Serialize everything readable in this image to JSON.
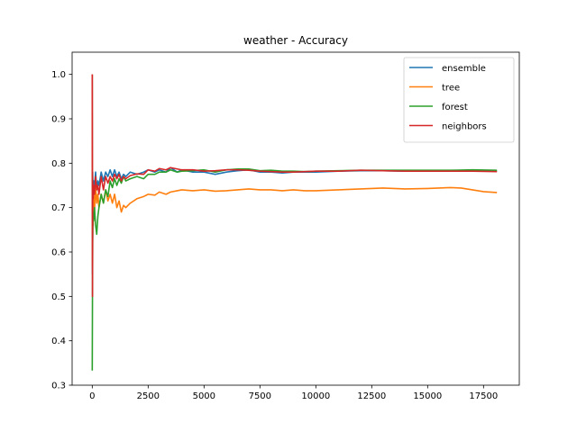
{
  "chart_data": {
    "type": "line",
    "title": "weather - Accuracy",
    "xlabel": "",
    "ylabel": "",
    "xlim": [
      -900,
      19100
    ],
    "ylim": [
      0.3,
      1.05
    ],
    "xticks": [
      0,
      2500,
      5000,
      7500,
      10000,
      12500,
      15000,
      17500
    ],
    "xtick_labels": [
      "0",
      "2500",
      "5000",
      "7500",
      "10000",
      "12500",
      "15000",
      "17500"
    ],
    "yticks": [
      0.3,
      0.4,
      0.5,
      0.6,
      0.7,
      0.8,
      0.9,
      1.0
    ],
    "ytick_labels": [
      "0.3",
      "0.4",
      "0.5",
      "0.6",
      "0.7",
      "0.8",
      "0.9",
      "1.0"
    ],
    "grid": false,
    "legend_position": "top-right",
    "series": [
      {
        "name": "ensemble",
        "color": "#1f77b4",
        "x": [
          0,
          10,
          20,
          40,
          60,
          100,
          150,
          200,
          250,
          300,
          400,
          500,
          600,
          700,
          800,
          900,
          1000,
          1100,
          1200,
          1300,
          1400,
          1500,
          1700,
          2000,
          2300,
          2500,
          2800,
          3000,
          3300,
          3500,
          3800,
          4000,
          4500,
          5000,
          5500,
          6000,
          6500,
          7000,
          7500,
          8000,
          8500,
          9000,
          9500,
          10000,
          11000,
          12000,
          13000,
          14000,
          15000,
          16000,
          17000,
          18100
        ],
        "y": [
          1.0,
          0.55,
          0.78,
          0.72,
          0.76,
          0.75,
          0.78,
          0.74,
          0.76,
          0.75,
          0.78,
          0.76,
          0.78,
          0.77,
          0.785,
          0.77,
          0.785,
          0.77,
          0.78,
          0.765,
          0.775,
          0.77,
          0.78,
          0.775,
          0.78,
          0.785,
          0.78,
          0.785,
          0.78,
          0.79,
          0.78,
          0.785,
          0.78,
          0.78,
          0.775,
          0.78,
          0.783,
          0.785,
          0.78,
          0.78,
          0.778,
          0.78,
          0.78,
          0.78,
          0.782,
          0.783,
          0.783,
          0.782,
          0.783,
          0.783,
          0.783,
          0.782
        ]
      },
      {
        "name": "tree",
        "color": "#ff7f0e",
        "x": [
          0,
          10,
          20,
          40,
          60,
          100,
          150,
          200,
          250,
          300,
          400,
          500,
          600,
          700,
          800,
          900,
          1000,
          1100,
          1200,
          1300,
          1400,
          1500,
          1700,
          2000,
          2300,
          2500,
          2800,
          3000,
          3300,
          3500,
          3800,
          4000,
          4500,
          5000,
          5500,
          6000,
          6500,
          7000,
          7500,
          8000,
          8500,
          9000,
          9500,
          10000,
          11000,
          12000,
          13000,
          14000,
          15000,
          16000,
          16500,
          17000,
          17500,
          18100
        ],
        "y": [
          1.0,
          0.57,
          0.71,
          0.66,
          0.73,
          0.69,
          0.75,
          0.71,
          0.73,
          0.7,
          0.73,
          0.71,
          0.74,
          0.715,
          0.73,
          0.71,
          0.73,
          0.7,
          0.715,
          0.69,
          0.705,
          0.7,
          0.71,
          0.72,
          0.725,
          0.73,
          0.728,
          0.735,
          0.73,
          0.735,
          0.738,
          0.74,
          0.738,
          0.74,
          0.737,
          0.738,
          0.74,
          0.742,
          0.74,
          0.74,
          0.738,
          0.74,
          0.738,
          0.738,
          0.74,
          0.742,
          0.744,
          0.742,
          0.743,
          0.745,
          0.744,
          0.74,
          0.736,
          0.734
        ]
      },
      {
        "name": "forest",
        "color": "#2ca02c",
        "x": [
          0,
          10,
          20,
          40,
          60,
          100,
          150,
          200,
          250,
          300,
          400,
          500,
          600,
          700,
          800,
          900,
          1000,
          1100,
          1200,
          1300,
          1400,
          1500,
          1700,
          2000,
          2300,
          2500,
          2800,
          3000,
          3300,
          3500,
          3800,
          4000,
          4500,
          5000,
          5500,
          6000,
          6500,
          7000,
          7500,
          8000,
          8500,
          9000,
          9500,
          10000,
          11000,
          12000,
          13000,
          14000,
          15000,
          16000,
          17000,
          18100
        ],
        "y": [
          0.333,
          0.5,
          0.62,
          0.69,
          0.67,
          0.7,
          0.66,
          0.64,
          0.68,
          0.7,
          0.73,
          0.71,
          0.74,
          0.725,
          0.76,
          0.745,
          0.765,
          0.75,
          0.765,
          0.755,
          0.77,
          0.76,
          0.765,
          0.77,
          0.765,
          0.775,
          0.775,
          0.78,
          0.78,
          0.785,
          0.78,
          0.782,
          0.783,
          0.785,
          0.78,
          0.785,
          0.787,
          0.787,
          0.783,
          0.784,
          0.782,
          0.782,
          0.781,
          0.782,
          0.783,
          0.784,
          0.784,
          0.784,
          0.784,
          0.784,
          0.785,
          0.784
        ]
      },
      {
        "name": "neighbors",
        "color": "#d62728",
        "x": [
          0,
          10,
          20,
          40,
          60,
          100,
          150,
          200,
          250,
          300,
          400,
          500,
          600,
          700,
          800,
          900,
          1000,
          1100,
          1200,
          1300,
          1400,
          1500,
          1700,
          2000,
          2300,
          2500,
          2800,
          3000,
          3300,
          3500,
          3800,
          4000,
          4500,
          5000,
          5500,
          6000,
          6500,
          7000,
          7500,
          8000,
          8500,
          9000,
          9500,
          10000,
          11000,
          12000,
          13000,
          14000,
          15000,
          16000,
          17000,
          18100
        ],
        "y": [
          1.0,
          0.5,
          0.76,
          0.72,
          0.75,
          0.73,
          0.77,
          0.74,
          0.75,
          0.73,
          0.77,
          0.74,
          0.77,
          0.755,
          0.77,
          0.76,
          0.775,
          0.765,
          0.775,
          0.76,
          0.77,
          0.765,
          0.772,
          0.776,
          0.775,
          0.785,
          0.782,
          0.788,
          0.785,
          0.79,
          0.787,
          0.785,
          0.785,
          0.782,
          0.783,
          0.785,
          0.785,
          0.784,
          0.782,
          0.781,
          0.78,
          0.78,
          0.781,
          0.782,
          0.782,
          0.784,
          0.783,
          0.782,
          0.782,
          0.782,
          0.782,
          0.781
        ]
      }
    ]
  }
}
